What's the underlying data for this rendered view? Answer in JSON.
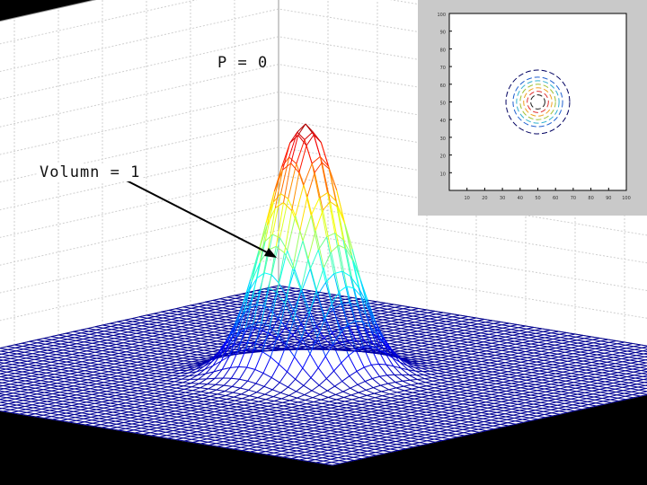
{
  "annotations": {
    "p_label": "P = 0",
    "volume_label": "Volumn = 1"
  },
  "colors": {
    "background": "#000000",
    "pane": "#ffffff",
    "grid": "#cfcfcf",
    "inset_bg": "#c9c9c9",
    "arrow": "#000000"
  },
  "chart_data": [
    {
      "type": "surface",
      "title": "",
      "function": "gaussian",
      "peak": 1,
      "sigma": 0.12,
      "grid": true,
      "colormap": "jet",
      "mesh": true
    },
    {
      "type": "contour",
      "title": "",
      "xlim": [
        0,
        100
      ],
      "ylim": [
        0,
        100
      ],
      "y_ticks": [
        "100",
        "90",
        "80",
        "70",
        "60",
        "50",
        "40",
        "30",
        "20",
        "10"
      ],
      "x_ticks": [
        "10",
        "20",
        "30",
        "40",
        "50",
        "60",
        "70",
        "80",
        "90",
        "100"
      ],
      "center": [
        50,
        50
      ],
      "levels": [
        {
          "radius": 4,
          "color": "#1a1a1a"
        },
        {
          "radius": 6,
          "color": "#e03030"
        },
        {
          "radius": 8,
          "color": "#f0a020"
        },
        {
          "radius": 10,
          "color": "#a0c030"
        },
        {
          "radius": 12,
          "color": "#30b0d0"
        },
        {
          "radius": 14,
          "color": "#2060d0"
        },
        {
          "radius": 18,
          "color": "#000060"
        }
      ]
    }
  ]
}
